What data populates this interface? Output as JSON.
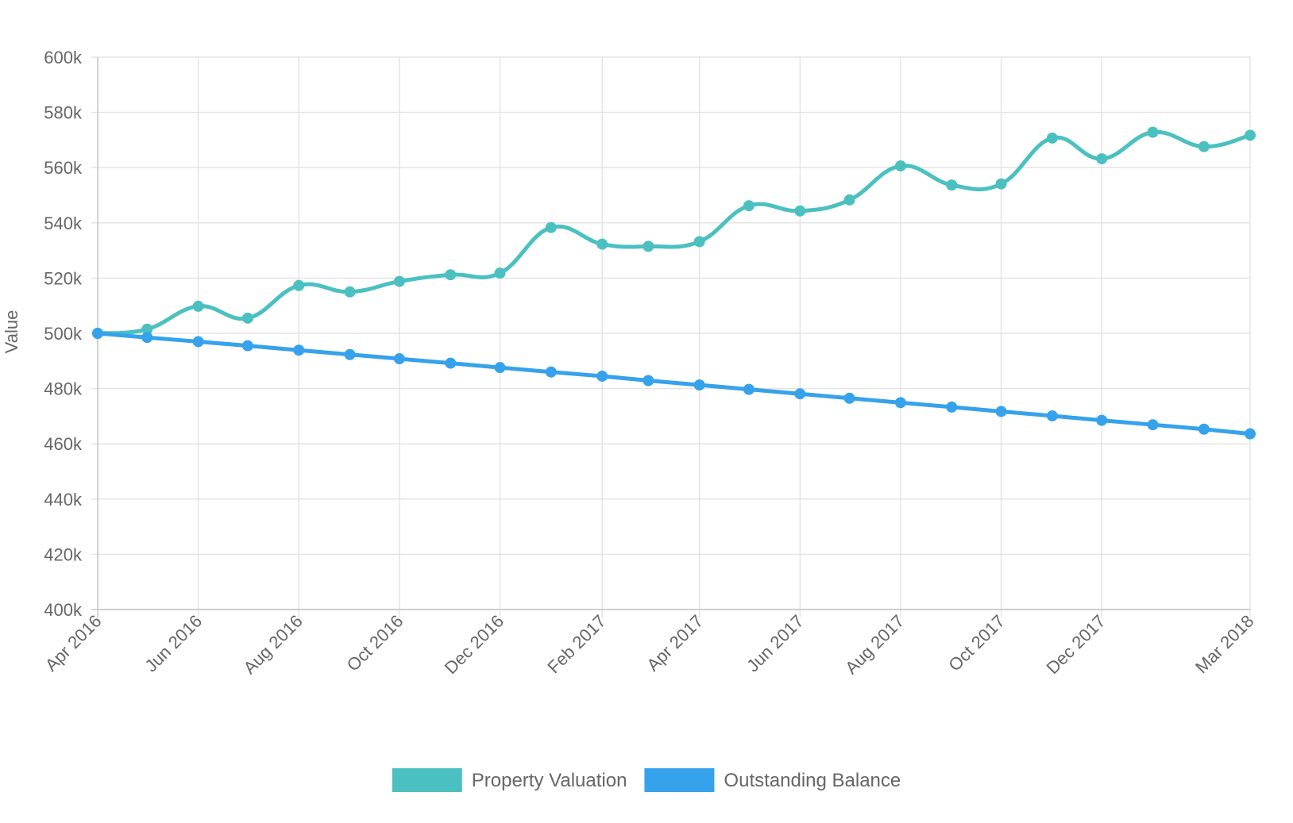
{
  "chart_data": {
    "type": "line",
    "ylabel": "Value",
    "ylim": [
      400000,
      600000
    ],
    "yticks": [
      "400k",
      "420k",
      "440k",
      "460k",
      "480k",
      "500k",
      "520k",
      "540k",
      "560k",
      "580k",
      "600k"
    ],
    "xlim": [
      "2016-04-01",
      "2018-03-01"
    ],
    "xticks": [
      {
        "label": "Apr 2016",
        "date": "2016-04-01"
      },
      {
        "label": "Jun 2016",
        "date": "2016-06-01"
      },
      {
        "label": "Aug 2016",
        "date": "2016-08-01"
      },
      {
        "label": "Oct 2016",
        "date": "2016-10-01"
      },
      {
        "label": "Dec 2016",
        "date": "2016-12-01"
      },
      {
        "label": "Feb 2017",
        "date": "2017-02-01"
      },
      {
        "label": "Apr 2017",
        "date": "2017-04-01"
      },
      {
        "label": "Jun 2017",
        "date": "2017-06-01"
      },
      {
        "label": "Aug 2017",
        "date": "2017-08-01"
      },
      {
        "label": "Oct 2017",
        "date": "2017-10-01"
      },
      {
        "label": "Dec 2017",
        "date": "2017-12-01"
      },
      {
        "label": "Mar 2018",
        "date": "2018-03-01"
      }
    ],
    "x": [
      "2016-04-01",
      "2016-05-01",
      "2016-06-01",
      "2016-07-01",
      "2016-08-01",
      "2016-09-01",
      "2016-10-01",
      "2016-11-01",
      "2016-12-01",
      "2017-01-01",
      "2017-02-01",
      "2017-03-01",
      "2017-04-01",
      "2017-05-01",
      "2017-06-01",
      "2017-07-01",
      "2017-08-01",
      "2017-09-01",
      "2017-10-01",
      "2017-11-01",
      "2017-12-01",
      "2018-01-01",
      "2018-02-01",
      "2018-03-01"
    ],
    "series": [
      {
        "name": "Property Valuation",
        "color": "#4bc0c0",
        "values": [
          500000,
          501500,
          509800,
          505500,
          517300,
          515000,
          518800,
          521200,
          521800,
          538300,
          532300,
          531500,
          533200,
          546200,
          544300,
          548300,
          560600,
          553700,
          554100,
          570700,
          563200,
          572800,
          567600,
          571700
        ]
      },
      {
        "name": "Outstanding Balance",
        "color": "#36a2eb",
        "values": [
          500000,
          498500,
          497000,
          495500,
          493900,
          492300,
          490800,
          489200,
          487600,
          486000,
          484500,
          482900,
          481300,
          479700,
          478100,
          476500,
          474900,
          473300,
          471700,
          470100,
          468500,
          466900,
          465300,
          463600
        ]
      }
    ],
    "grid": true,
    "legend": "bottom"
  }
}
